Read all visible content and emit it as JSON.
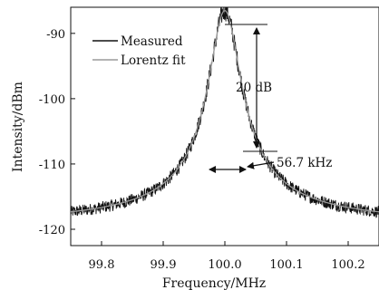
{
  "chart_data": {
    "type": "line",
    "title": "",
    "xlabel": "Frequency/MHz",
    "ylabel": "Intensity/dBm",
    "xlim": [
      99.75,
      100.25
    ],
    "ylim": [
      -122.5,
      -86
    ],
    "xticks": [
      "99.8",
      "99.9",
      "100.0",
      "100.1",
      "100.2"
    ],
    "yticks": [
      "-90",
      "-100",
      "-110",
      "-120"
    ],
    "grid": false,
    "legend_position": "top-left",
    "series": [
      {
        "name": "Measured",
        "color": "#111111",
        "style": "noisy",
        "center": 100.0,
        "peak": -86.5,
        "baseline": -119.5,
        "noise_amplitude": 0.9
      },
      {
        "name": "Lorentz fit",
        "color": "#9a9a9a",
        "style": "smooth",
        "center": 100.0,
        "peak": -86.5,
        "baseline": -119.5
      }
    ],
    "annotations": [
      {
        "type": "vertical-arrow",
        "label": "20 dB",
        "x": 100.035,
        "y_top": -87,
        "y_bottom": -107
      },
      {
        "type": "horizontal-arrow",
        "label": "56.7 kHz",
        "x_left": 99.972,
        "x_right": 100.028,
        "y": -110
      }
    ]
  }
}
